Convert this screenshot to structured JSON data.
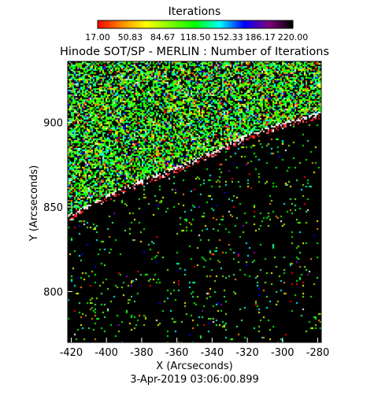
{
  "chart_data": {
    "type": "heatmap",
    "title": "Hinode SOT/SP - MERLIN : Number of Iterations",
    "xlabel": "X (Arcseconds)",
    "ylabel": "Y (Arcseconds)",
    "timestamp": "3-Apr-2019 03:06:00.899",
    "xlim": [
      -422,
      -278
    ],
    "ylim": [
      770,
      936
    ],
    "x_ticks": [
      -420,
      -400,
      -380,
      -360,
      -340,
      -320,
      -300,
      -280
    ],
    "x_tick_labels": [
      "-420",
      "-400",
      "-380",
      "-360",
      "-340",
      "-320",
      "-300",
      "-280"
    ],
    "y_ticks": [
      800,
      850,
      900
    ],
    "y_tick_labels": [
      "800",
      "850",
      "900"
    ],
    "limb": {
      "points": [
        [
          -422,
          845
        ],
        [
          -400,
          857
        ],
        [
          -380,
          866
        ],
        [
          -360,
          874
        ],
        [
          -340,
          883
        ],
        [
          -320,
          893
        ],
        [
          -300,
          900
        ],
        [
          -278,
          906
        ]
      ]
    },
    "colorbar": {
      "title": "Iterations",
      "min": 17.0,
      "max": 220.0,
      "colors": [
        "#ff0000",
        "#ff8c00",
        "#ffff00",
        "#7cfc00",
        "#00ff00",
        "#00ffff",
        "#0000ff",
        "#800080",
        "#000000"
      ],
      "tick_labels": [
        "17.00",
        "50.83",
        "84.67",
        "118.50",
        "152.33",
        "186.17",
        "220.00"
      ]
    }
  }
}
